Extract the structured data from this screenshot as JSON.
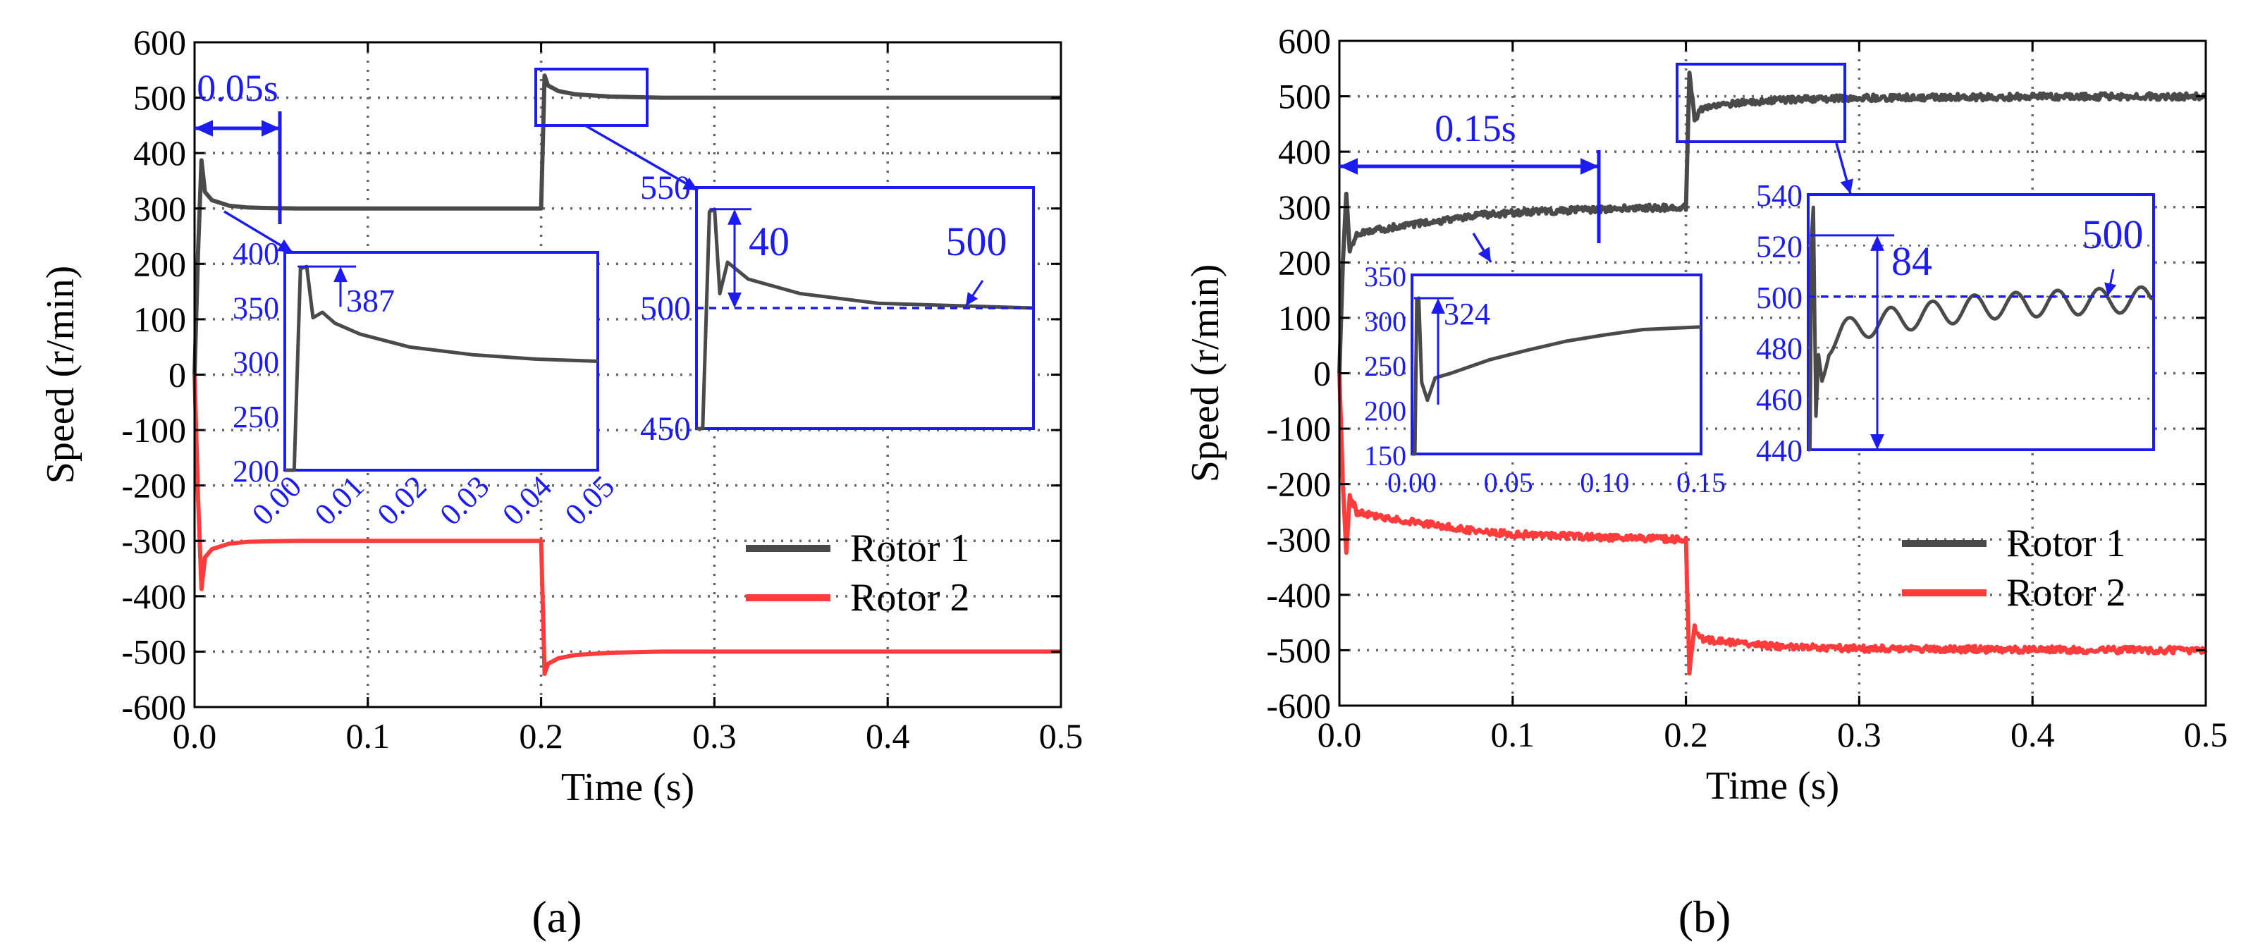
{
  "figure": {
    "panel_a_label": "(a)",
    "panel_b_label": "(b)",
    "panel_a_letter": "a",
    "panel_b_letter": "b"
  },
  "colors": {
    "rotor1": "#4a4a4a",
    "rotor2": "#ff3b3b",
    "annotation": "#1c1cf0",
    "grid": "#666666",
    "axis": "#000000"
  },
  "chart_data": [
    {
      "panel": "a",
      "type": "line",
      "xlabel": "Time (s)",
      "ylabel": "Speed (r/min)",
      "xlim": [
        0,
        0.5
      ],
      "ylim": [
        -600,
        600
      ],
      "xticks": [
        "0.0",
        "0.1",
        "0.2",
        "0.3",
        "0.4",
        "0.5"
      ],
      "yticks": [
        "600",
        "500",
        "400",
        "300",
        "200",
        "100",
        "0",
        "-100",
        "-200",
        "-300",
        "-400",
        "-500",
        "-600"
      ],
      "grid": true,
      "legend_position": "lower-right",
      "series": [
        {
          "name": "Rotor 1",
          "x": [
            0,
            0.002,
            0.004,
            0.006,
            0.01,
            0.02,
            0.03,
            0.04,
            0.06,
            0.1,
            0.15,
            0.199,
            0.2,
            0.202,
            0.204,
            0.21,
            0.22,
            0.24,
            0.27,
            0.3,
            0.4,
            0.5
          ],
          "y": [
            0,
            220,
            387,
            330,
            315,
            305,
            302,
            301,
            300,
            300,
            300,
            300,
            300,
            540,
            522,
            512,
            506,
            502,
            500,
            500,
            500,
            500
          ]
        },
        {
          "name": "Rotor 2",
          "x": [
            0,
            0.002,
            0.004,
            0.006,
            0.01,
            0.02,
            0.03,
            0.04,
            0.06,
            0.1,
            0.15,
            0.199,
            0.2,
            0.202,
            0.204,
            0.21,
            0.22,
            0.24,
            0.27,
            0.3,
            0.4,
            0.5
          ],
          "y": [
            0,
            -220,
            -387,
            -330,
            -315,
            -305,
            -302,
            -301,
            -300,
            -300,
            -300,
            -300,
            -300,
            -540,
            -522,
            -512,
            -506,
            -502,
            -500,
            -500,
            -500,
            -500
          ]
        }
      ],
      "annotations": {
        "interval_label": "0.05s",
        "inset1": {
          "xticks": [
            "0.00",
            "0.01",
            "0.02",
            "0.03",
            "0.04",
            "0.05"
          ],
          "yticks": [
            "400",
            "350",
            "300",
            "250",
            "200"
          ],
          "peak_label": "387",
          "x": [
            0,
            0.0015,
            0.0025,
            0.0035,
            0.0045,
            0.006,
            0.008,
            0.012,
            0.02,
            0.03,
            0.04,
            0.05
          ],
          "y": [
            200,
            200,
            385,
            387,
            340,
            345,
            335,
            325,
            313,
            306,
            302,
            300
          ]
        },
        "inset2": {
          "yticks": [
            "550",
            "500",
            "450"
          ],
          "overshoot_label": "40",
          "target_label": "500",
          "x": [
            0.2,
            0.2012,
            0.2025,
            0.2035,
            0.2045,
            0.206,
            0.21,
            0.22,
            0.235,
            0.25,
            0.265
          ],
          "y": [
            450,
            450,
            540,
            541,
            506,
            519,
            512,
            506,
            502,
            501,
            500
          ]
        }
      }
    },
    {
      "panel": "b",
      "type": "line",
      "xlabel": "Time (s)",
      "ylabel": "Speed (r/min)",
      "xlim": [
        0,
        0.5
      ],
      "ylim": [
        -600,
        600
      ],
      "xticks": [
        "0.0",
        "0.1",
        "0.2",
        "0.3",
        "0.4",
        "0.5"
      ],
      "yticks": [
        "600",
        "500",
        "400",
        "300",
        "200",
        "100",
        "0",
        "-100",
        "-200",
        "-300",
        "-400",
        "-500",
        "-600"
      ],
      "grid": true,
      "legend_position": "lower-right",
      "series": [
        {
          "name": "Rotor 1",
          "x": [
            0,
            0.002,
            0.004,
            0.006,
            0.01,
            0.02,
            0.05,
            0.08,
            0.1,
            0.15,
            0.199,
            0.2,
            0.202,
            0.205,
            0.21,
            0.23,
            0.26,
            0.3,
            0.4,
            0.5
          ],
          "y": [
            0,
            200,
            324,
            220,
            250,
            258,
            272,
            285,
            290,
            296,
            300,
            300,
            540,
            460,
            480,
            488,
            494,
            497,
            499,
            500
          ]
        },
        {
          "name": "Rotor 2",
          "x": [
            0,
            0.002,
            0.004,
            0.006,
            0.01,
            0.02,
            0.05,
            0.08,
            0.1,
            0.15,
            0.199,
            0.2,
            0.202,
            0.205,
            0.21,
            0.23,
            0.26,
            0.3,
            0.4,
            0.5
          ],
          "y": [
            0,
            -200,
            -324,
            -220,
            -250,
            -258,
            -272,
            -285,
            -290,
            -296,
            -300,
            -300,
            -540,
            -460,
            -480,
            -488,
            -494,
            -497,
            -499,
            -500
          ]
        }
      ],
      "annotations": {
        "interval_label": "0.15s",
        "inset1": {
          "xticks": [
            "0.00",
            "0.05",
            "0.10",
            "0.15"
          ],
          "yticks": [
            "350",
            "300",
            "250",
            "200",
            "150"
          ],
          "peak_label": "324",
          "x": [
            0,
            0.0015,
            0.0025,
            0.0035,
            0.005,
            0.008,
            0.012,
            0.02,
            0.04,
            0.06,
            0.08,
            0.1,
            0.12,
            0.15
          ],
          "y": [
            150,
            150,
            322,
            324,
            230,
            210,
            235,
            240,
            255,
            266,
            276,
            283,
            289,
            292
          ]
        },
        "inset2": {
          "yticks": [
            "540",
            "520",
            "500",
            "480",
            "460",
            "440"
          ],
          "overshoot_label": "84",
          "target_label": "500",
          "x": [
            0.2,
            0.201,
            0.202,
            0.203,
            0.2045,
            0.206,
            0.208,
            0.212,
            0.22,
            0.24,
            0.26,
            0.28,
            0.3,
            0.33,
            0.36,
            0.4
          ],
          "y": [
            440,
            440,
            524,
            535,
            452,
            478,
            470,
            482,
            486,
            490,
            492,
            494,
            496,
            497,
            498,
            499
          ]
        }
      }
    }
  ]
}
